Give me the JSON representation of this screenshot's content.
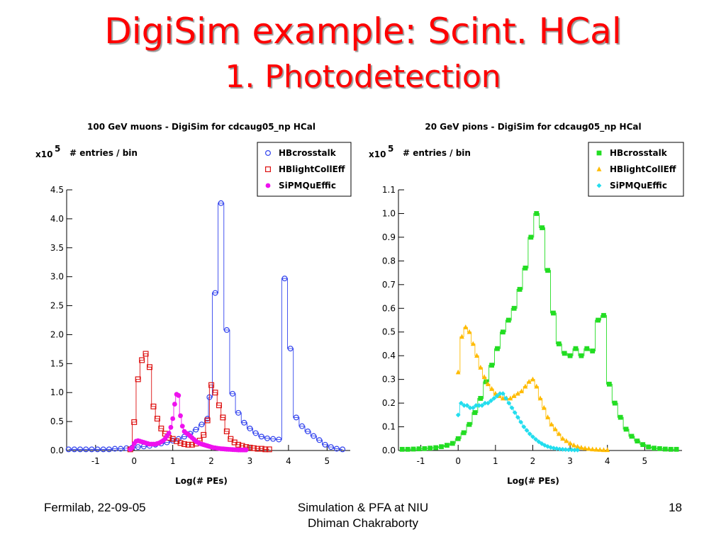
{
  "slide": {
    "title_line1": "DigiSim example: Scint. HCal",
    "title_line2": "1. Photodetection",
    "footer_left": "Fermilab, 22-09-05",
    "footer_center_line1": "Simulation & PFA at NIU",
    "footer_center_line2": "Dhiman Chakraborty",
    "footer_right": "18"
  },
  "chart_data": [
    {
      "type": "scatter",
      "title": "100 GeV muons - DigiSim for cdcaug05_np HCal",
      "yscale_label": "x10",
      "yscale_exp": "5",
      "ylabel": "# entries / bin",
      "xlabel": "Log(# PEs)",
      "xlim": [
        -1.75,
        5.6
      ],
      "ylim": [
        0,
        4.5
      ],
      "xticks": [
        -1,
        0,
        1,
        2,
        3,
        4,
        5
      ],
      "yticks": [
        0,
        0.5,
        1.0,
        1.5,
        2.0,
        2.5,
        3.0,
        3.5,
        4.0,
        4.5
      ],
      "ytick_labels": [
        "0.0",
        "0.5",
        "1.0",
        "1.5",
        "2.0",
        "2.5",
        "3.0",
        "3.5",
        "4.0",
        "4.5"
      ],
      "legend_position": "top-right",
      "series": [
        {
          "name": "HBcrosstalk",
          "color": "#3344ee",
          "marker": "circle-open",
          "x": [
            -1.7,
            -1.55,
            -1.4,
            -1.25,
            -1.1,
            -0.95,
            -0.8,
            -0.65,
            -0.5,
            -0.35,
            -0.2,
            -0.05,
            0.1,
            0.25,
            0.4,
            0.55,
            0.7,
            0.85,
            1.0,
            1.15,
            1.3,
            1.45,
            1.6,
            1.75,
            1.9,
            1.95,
            2.1,
            2.25,
            2.4,
            2.55,
            2.7,
            2.85,
            3.0,
            3.15,
            3.3,
            3.45,
            3.6,
            3.75,
            3.9,
            4.05,
            4.2,
            4.35,
            4.5,
            4.65,
            4.8,
            4.95,
            5.1,
            5.25,
            5.4
          ],
          "y": [
            0.02,
            0.02,
            0.02,
            0.02,
            0.02,
            0.02,
            0.02,
            0.02,
            0.03,
            0.03,
            0.04,
            0.05,
            0.06,
            0.07,
            0.08,
            0.1,
            0.12,
            0.14,
            0.17,
            0.2,
            0.24,
            0.29,
            0.36,
            0.45,
            0.55,
            0.92,
            2.72,
            4.27,
            2.08,
            0.98,
            0.65,
            0.48,
            0.38,
            0.3,
            0.24,
            0.21,
            0.2,
            0.19,
            2.97,
            1.76,
            0.57,
            0.42,
            0.33,
            0.25,
            0.18,
            0.1,
            0.06,
            0.03,
            0.02
          ]
        },
        {
          "name": "HBlightCollEff",
          "color": "#dd1111",
          "marker": "square-open",
          "x": [
            -0.1,
            0.0,
            0.1,
            0.2,
            0.3,
            0.4,
            0.5,
            0.6,
            0.7,
            0.8,
            0.9,
            1.0,
            1.1,
            1.2,
            1.3,
            1.4,
            1.5,
            1.6,
            1.7,
            1.8,
            1.9,
            2.0,
            2.1,
            2.2,
            2.3,
            2.4,
            2.5,
            2.6,
            2.7,
            2.8,
            2.9,
            3.0,
            3.1,
            3.2,
            3.3,
            3.4,
            3.5
          ],
          "y": [
            0.02,
            0.49,
            1.23,
            1.56,
            1.67,
            1.44,
            0.76,
            0.55,
            0.38,
            0.29,
            0.22,
            0.2,
            0.16,
            0.13,
            0.11,
            0.1,
            0.1,
            0.12,
            0.17,
            0.27,
            0.52,
            1.13,
            1.0,
            0.78,
            0.57,
            0.33,
            0.2,
            0.14,
            0.1,
            0.08,
            0.06,
            0.05,
            0.04,
            0.03,
            0.03,
            0.02,
            0.02
          ]
        },
        {
          "name": "SiPMQuEffic",
          "color": "#ee11ee",
          "marker": "circle-filled",
          "x": [
            -0.1,
            -0.05,
            0.0,
            0.05,
            0.1,
            0.15,
            0.2,
            0.25,
            0.3,
            0.35,
            0.4,
            0.45,
            0.5,
            0.55,
            0.6,
            0.65,
            0.7,
            0.75,
            0.8,
            0.85,
            0.9,
            0.95,
            1.0,
            1.05,
            1.1,
            1.15,
            1.2,
            1.25,
            1.3,
            1.35,
            1.4,
            1.45,
            1.5,
            1.55,
            1.6,
            1.65,
            1.7,
            1.75,
            1.8,
            1.85,
            1.9,
            1.95,
            2.0,
            2.05,
            2.1,
            2.15,
            2.2,
            2.25,
            2.3,
            2.35,
            2.4,
            2.45,
            2.5,
            2.55,
            2.6,
            2.65,
            2.7,
            2.75,
            2.8,
            2.85,
            2.9
          ],
          "y": [
            0.02,
            0.05,
            0.12,
            0.16,
            0.17,
            0.16,
            0.15,
            0.14,
            0.13,
            0.12,
            0.11,
            0.11,
            0.11,
            0.11,
            0.12,
            0.13,
            0.15,
            0.17,
            0.2,
            0.25,
            0.3,
            0.4,
            0.55,
            0.8,
            0.97,
            0.95,
            0.6,
            0.42,
            0.33,
            0.3,
            0.28,
            0.25,
            0.22,
            0.19,
            0.16,
            0.14,
            0.12,
            0.11,
            0.1,
            0.09,
            0.08,
            0.07,
            0.06,
            0.05,
            0.045,
            0.04,
            0.035,
            0.03,
            0.028,
            0.025,
            0.022,
            0.02,
            0.018,
            0.016,
            0.014,
            0.012,
            0.01,
            0.01,
            0.01,
            0.01,
            0.01
          ]
        }
      ]
    },
    {
      "type": "scatter",
      "title": "20 GeV pions - DigiSim for cdcaug05_np HCal",
      "yscale_label": "x10",
      "yscale_exp": "5",
      "ylabel": "# entries / bin",
      "xlabel": "Log(# PEs)",
      "xlim": [
        -1.6,
        6.0
      ],
      "ylim": [
        0,
        1.1
      ],
      "xticks": [
        -1,
        0,
        1,
        2,
        3,
        4,
        5
      ],
      "yticks": [
        0,
        0.1,
        0.2,
        0.3,
        0.4,
        0.5,
        0.6,
        0.7,
        0.8,
        0.9,
        1.0,
        1.1
      ],
      "ytick_labels": [
        "0.0",
        "0.1",
        "0.2",
        "0.3",
        "0.4",
        "0.5",
        "0.6",
        "0.7",
        "0.8",
        "0.9",
        "1.0",
        "1.1"
      ],
      "legend_position": "top-right",
      "series": [
        {
          "name": "HBcrosstalk",
          "color": "#22dd22",
          "marker": "square-filled",
          "x": [
            -1.5,
            -1.35,
            -1.2,
            -1.05,
            -0.9,
            -0.75,
            -0.6,
            -0.45,
            -0.3,
            -0.15,
            0.0,
            0.15,
            0.3,
            0.45,
            0.6,
            0.75,
            0.9,
            1.05,
            1.2,
            1.35,
            1.5,
            1.65,
            1.8,
            1.95,
            2.1,
            2.25,
            2.4,
            2.55,
            2.7,
            2.85,
            3.0,
            3.15,
            3.3,
            3.45,
            3.6,
            3.75,
            3.9,
            4.05,
            4.2,
            4.35,
            4.5,
            4.65,
            4.8,
            4.95,
            5.1,
            5.25,
            5.4,
            5.55,
            5.7,
            5.85
          ],
          "y": [
            0.005,
            0.005,
            0.006,
            0.007,
            0.008,
            0.01,
            0.012,
            0.016,
            0.022,
            0.03,
            0.05,
            0.075,
            0.11,
            0.16,
            0.22,
            0.29,
            0.36,
            0.43,
            0.5,
            0.55,
            0.6,
            0.68,
            0.77,
            0.9,
            1.0,
            0.94,
            0.76,
            0.58,
            0.45,
            0.41,
            0.4,
            0.43,
            0.4,
            0.43,
            0.42,
            0.55,
            0.57,
            0.28,
            0.2,
            0.14,
            0.09,
            0.06,
            0.04,
            0.025,
            0.015,
            0.01,
            0.008,
            0.006,
            0.005,
            0.005
          ]
        },
        {
          "name": "HBlightCollEff",
          "color": "#ffbb00",
          "marker": "triangle-filled",
          "x": [
            0.0,
            0.1,
            0.2,
            0.3,
            0.4,
            0.5,
            0.6,
            0.7,
            0.8,
            0.9,
            1.0,
            1.1,
            1.2,
            1.3,
            1.4,
            1.5,
            1.6,
            1.7,
            1.8,
            1.9,
            2.0,
            2.1,
            2.2,
            2.3,
            2.4,
            2.5,
            2.6,
            2.7,
            2.8,
            2.9,
            3.0,
            3.1,
            3.2,
            3.3,
            3.4,
            3.5,
            3.6,
            3.7,
            3.8,
            3.9,
            4.0
          ],
          "y": [
            0.33,
            0.48,
            0.52,
            0.5,
            0.45,
            0.4,
            0.35,
            0.31,
            0.28,
            0.26,
            0.24,
            0.23,
            0.22,
            0.22,
            0.22,
            0.23,
            0.24,
            0.25,
            0.27,
            0.29,
            0.3,
            0.27,
            0.22,
            0.18,
            0.14,
            0.11,
            0.09,
            0.07,
            0.05,
            0.04,
            0.03,
            0.022,
            0.016,
            0.012,
            0.009,
            0.007,
            0.005,
            0.004,
            0.003,
            0.002,
            0.002
          ]
        },
        {
          "name": "SiPMQuEffic",
          "color": "#22ddee",
          "marker": "diamond-filled",
          "x": [
            0.0,
            0.08,
            0.16,
            0.24,
            0.32,
            0.4,
            0.48,
            0.56,
            0.64,
            0.72,
            0.8,
            0.88,
            0.96,
            1.04,
            1.12,
            1.2,
            1.28,
            1.36,
            1.44,
            1.52,
            1.6,
            1.68,
            1.76,
            1.84,
            1.92,
            2.0,
            2.08,
            2.16,
            2.24,
            2.32,
            2.4,
            2.48,
            2.56,
            2.64,
            2.72,
            2.8,
            2.88,
            2.96,
            3.04,
            3.12,
            3.2
          ],
          "y": [
            0.15,
            0.2,
            0.19,
            0.19,
            0.18,
            0.18,
            0.19,
            0.19,
            0.19,
            0.2,
            0.2,
            0.21,
            0.22,
            0.23,
            0.24,
            0.24,
            0.22,
            0.2,
            0.18,
            0.16,
            0.14,
            0.12,
            0.1,
            0.085,
            0.07,
            0.058,
            0.047,
            0.037,
            0.029,
            0.022,
            0.017,
            0.013,
            0.01,
            0.008,
            0.006,
            0.005,
            0.004,
            0.003,
            0.003,
            0.002,
            0.002
          ]
        }
      ]
    }
  ]
}
